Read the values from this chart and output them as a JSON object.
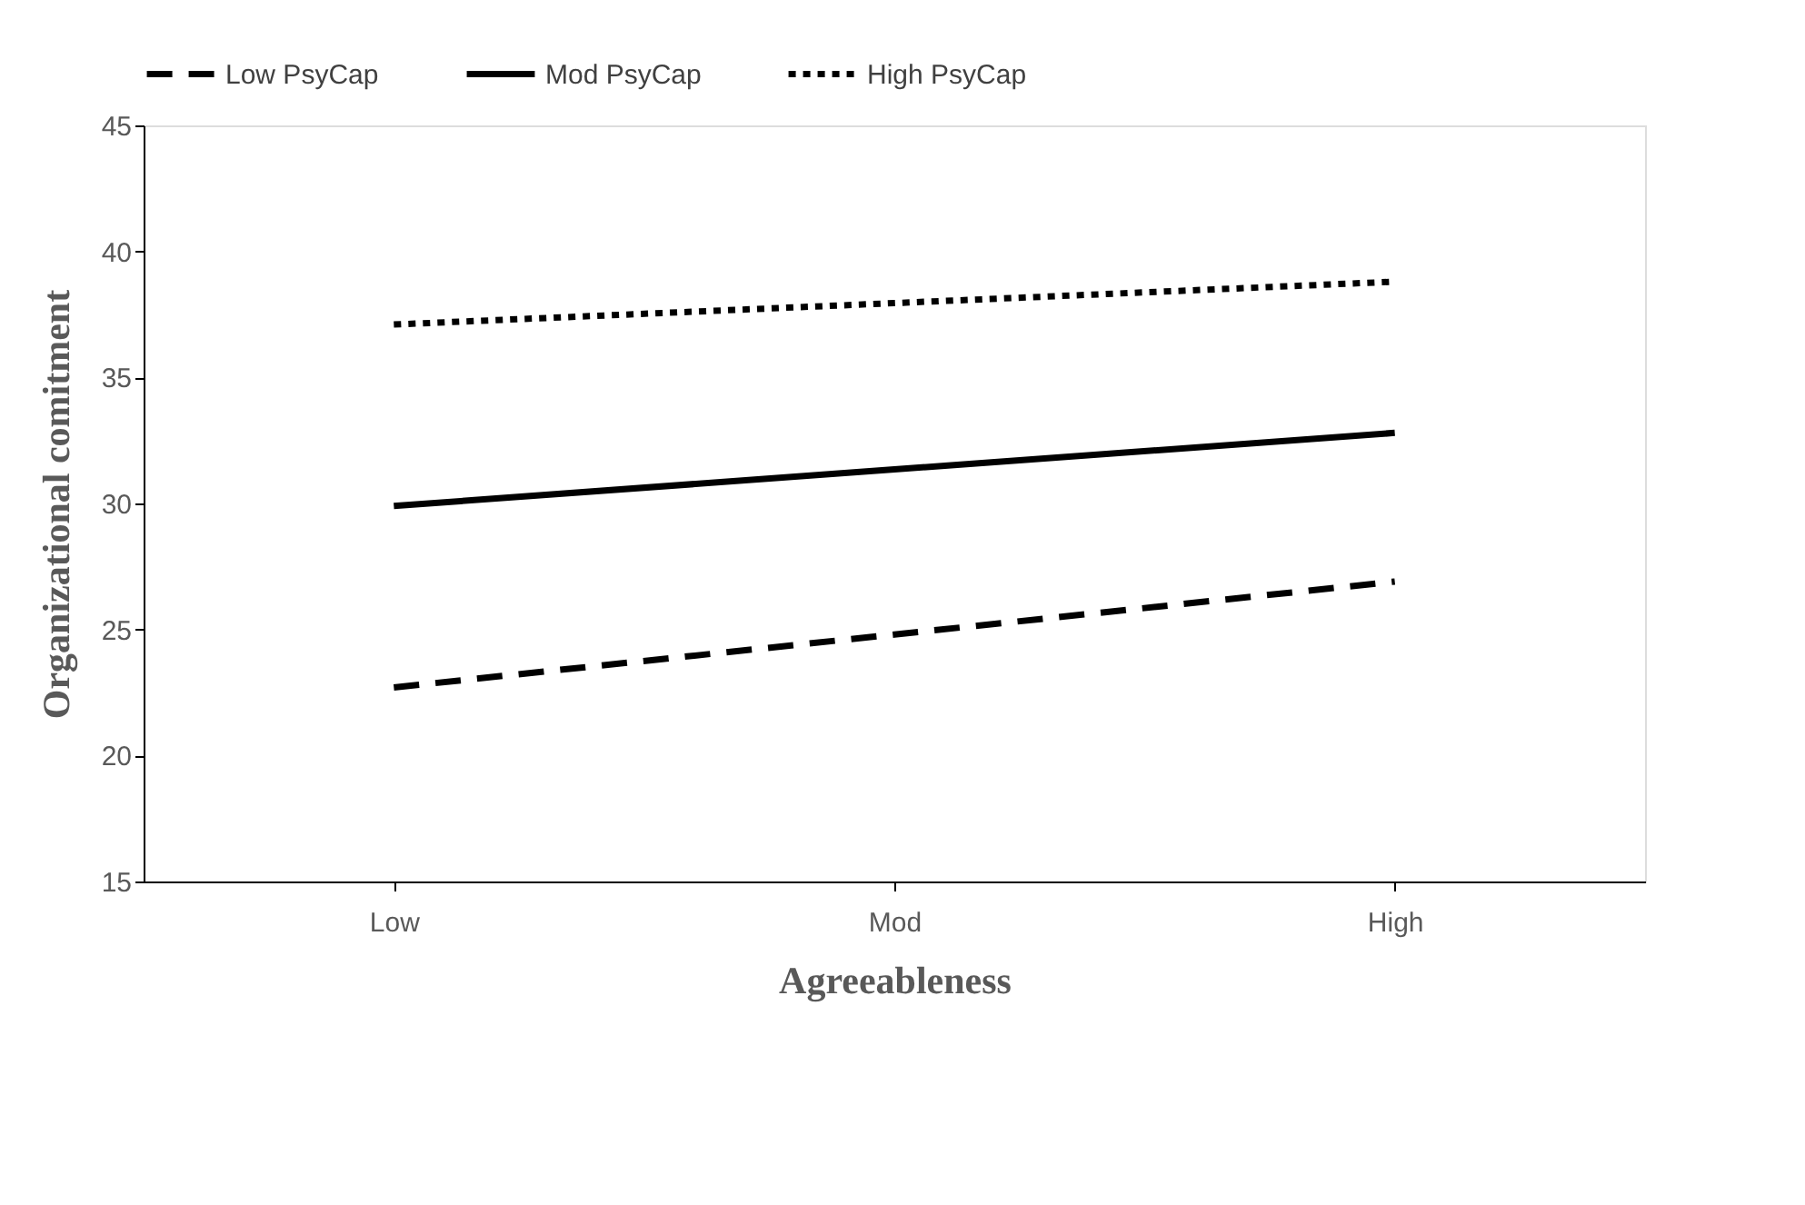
{
  "chart_data": {
    "type": "line",
    "xlabel": "Agreeableness",
    "ylabel": "Organizational comitment",
    "categories": [
      "Low",
      "Mod",
      "High"
    ],
    "series": [
      {
        "name": "Low PsyCap",
        "color": "#000000",
        "line_style": "dashed",
        "values": [
          22.7,
          24.8,
          26.9
        ]
      },
      {
        "name": "Mod PsyCap",
        "color": "#000000",
        "line_style": "solid",
        "values": [
          29.9,
          31.35,
          32.8
        ]
      },
      {
        "name": "High PsyCap",
        "color": "#000000",
        "line_style": "dotted",
        "values": [
          37.1,
          37.95,
          38.8
        ]
      }
    ],
    "ylim": [
      15,
      45
    ],
    "yticks": [
      15,
      20,
      25,
      30,
      35,
      40,
      45
    ],
    "grid": false,
    "legend": "top"
  }
}
